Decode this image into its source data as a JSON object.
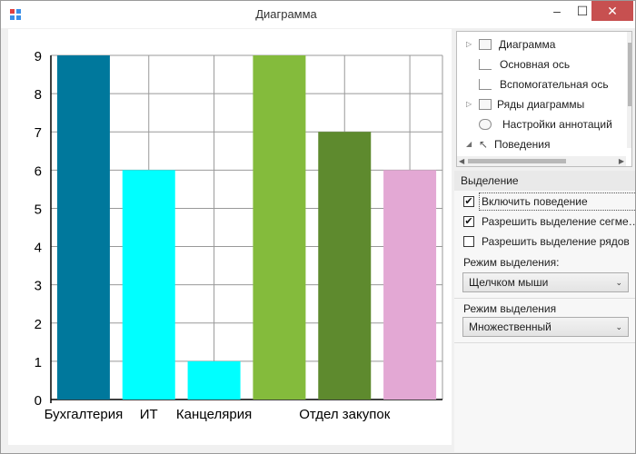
{
  "window": {
    "title": "Диаграмма",
    "minimize": "–",
    "maximize": "☐",
    "close": "✕"
  },
  "tree": {
    "items": [
      {
        "label": "Диаграмма",
        "expandable": true
      },
      {
        "label": "Основная ось",
        "expandable": false
      },
      {
        "label": "Вспомогательная ось",
        "expandable": false
      },
      {
        "label": "Ряды диаграммы",
        "expandable": true
      },
      {
        "label": "Настройки аннотаций",
        "expandable": false
      },
      {
        "label": "Поведения",
        "expandable": true,
        "expanded": true
      }
    ]
  },
  "properties": {
    "category": "Выделение",
    "checkboxes": [
      {
        "label": "Включить поведение",
        "checked": true
      },
      {
        "label": "Разрешить выделение сегме…",
        "checked": true
      },
      {
        "label": "Разрешить выделение рядов",
        "checked": false
      }
    ],
    "mode_label": "Режим выделения:",
    "mode_value": "Щелчком мыши",
    "selection_label": "Режим выделения",
    "selection_value": "Множественный"
  },
  "chart_data": {
    "type": "bar",
    "categories": [
      "Бухгалтерия",
      "ИТ",
      "Канцелярия",
      "",
      "Отдел закупок",
      ""
    ],
    "values": [
      9,
      6,
      1,
      9,
      7,
      6
    ],
    "colors": [
      "#00789c",
      "#00ffff",
      "#00ffff",
      "#84bb3c",
      "#5e8a2e",
      "#e3a8d4"
    ],
    "ylim": [
      0,
      9
    ],
    "yticks": [
      "0",
      "1",
      "2",
      "3",
      "4",
      "5",
      "6",
      "7",
      "8",
      "9"
    ],
    "grid": true
  }
}
